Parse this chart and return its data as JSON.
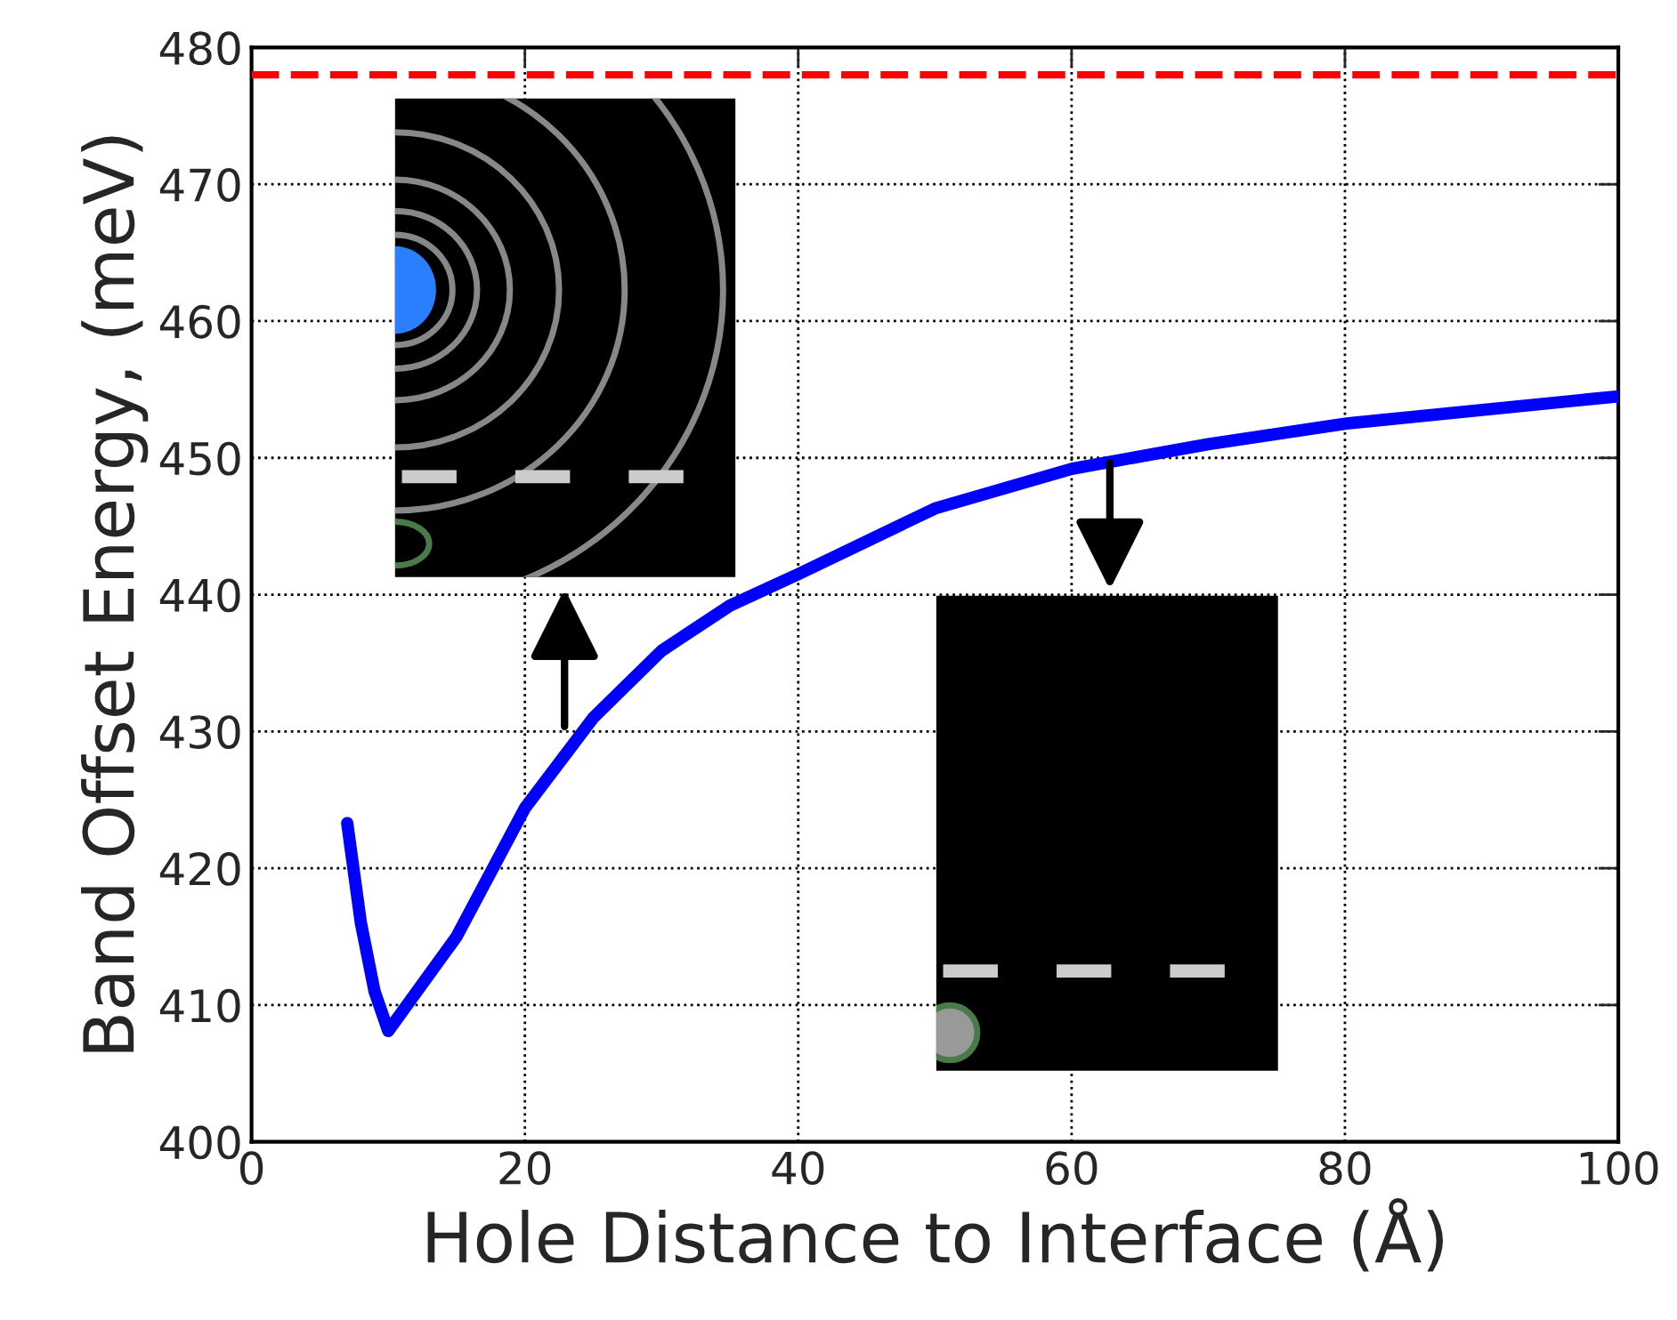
{
  "chart_data": {
    "type": "line",
    "xlabel": "Hole Distance to Interface (Å)",
    "ylabel": "Band Offset Energy, (meV)",
    "xlim": [
      0,
      100
    ],
    "xticks": [
      0,
      20,
      40,
      60,
      80,
      100
    ],
    "ylim": [
      400,
      480
    ],
    "yticks": [
      400,
      410,
      420,
      430,
      440,
      450,
      460,
      470,
      480
    ],
    "grid": true,
    "legend": false,
    "marker": "none",
    "line_style": "solid",
    "series": [
      {
        "color": "#0000ff",
        "x": [
          7,
          8,
          9,
          10,
          15,
          20,
          25,
          30,
          35,
          40,
          50,
          60,
          70,
          80,
          100
        ],
        "values": [
          423.3,
          416,
          411,
          408.1,
          415,
          424.4,
          431,
          435.9,
          439.2,
          441.5,
          446.3,
          449.2,
          451,
          452.5,
          454.5
        ]
      }
    ],
    "ref_lines": [
      {
        "axis": "y",
        "value": 478,
        "color": "#ff0000",
        "line_style": "dashed"
      }
    ]
  }
}
